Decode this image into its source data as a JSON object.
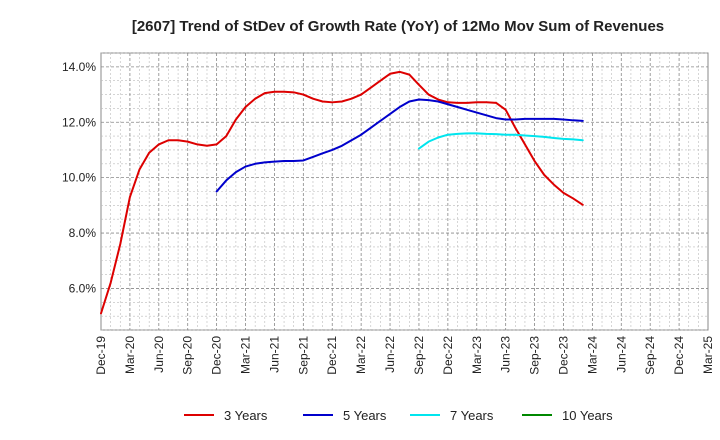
{
  "chart_data": {
    "type": "line",
    "title": "[2607]  Trend of StDev of Growth Rate (YoY) of 12Mo Mov Sum of Revenues",
    "xlabel": "",
    "ylabel": "",
    "ylim": [
      4.5,
      14.5
    ],
    "y_ticks": [
      6.0,
      8.0,
      10.0,
      12.0,
      14.0
    ],
    "y_tick_labels": [
      "6.0%",
      "8.0%",
      "10.0%",
      "12.0%",
      "14.0%"
    ],
    "x_tick_labels": [
      "Dec-19",
      "Mar-20",
      "Jun-20",
      "Sep-20",
      "Dec-20",
      "Mar-21",
      "Jun-21",
      "Sep-21",
      "Dec-21",
      "Mar-22",
      "Jun-22",
      "Sep-22",
      "Dec-22",
      "Mar-23",
      "Jun-23",
      "Sep-23",
      "Dec-23",
      "Mar-24",
      "Jun-24",
      "Sep-24",
      "Dec-24",
      "Mar-25"
    ],
    "grid": true,
    "legend_position": "bottom",
    "series": [
      {
        "name": "3 Years",
        "color": "#dd0000",
        "start_index": 0,
        "values": [
          5.1,
          6.2,
          7.6,
          9.3,
          10.3,
          10.9,
          11.2,
          11.35,
          11.35,
          11.3,
          11.2,
          11.15,
          11.2,
          11.5,
          12.1,
          12.55,
          12.85,
          13.05,
          13.1,
          13.1,
          13.08,
          13.0,
          12.85,
          12.75,
          12.72,
          12.75,
          12.85,
          13.0,
          13.25,
          13.5,
          13.75,
          13.82,
          13.72,
          13.35,
          13.0,
          12.82,
          12.72,
          12.7,
          12.7,
          12.72,
          12.72,
          12.7,
          12.45,
          11.8,
          11.2,
          10.6,
          10.1,
          9.75,
          9.45,
          9.25,
          9.02
        ]
      },
      {
        "name": "5 Years",
        "color": "#0000cc",
        "start_index": 12,
        "values": [
          9.5,
          9.9,
          10.2,
          10.4,
          10.5,
          10.55,
          10.58,
          10.6,
          10.6,
          10.62,
          10.75,
          10.88,
          11.0,
          11.15,
          11.35,
          11.55,
          11.8,
          12.05,
          12.3,
          12.55,
          12.75,
          12.82,
          12.8,
          12.75,
          12.65,
          12.55,
          12.45,
          12.35,
          12.25,
          12.15,
          12.1,
          12.1,
          12.12,
          12.12,
          12.12,
          12.12,
          12.1,
          12.07,
          12.05
        ]
      },
      {
        "name": "7 Years",
        "color": "#00e5ee",
        "start_index": 33,
        "values": [
          11.05,
          11.3,
          11.45,
          11.55,
          11.58,
          11.6,
          11.6,
          11.58,
          11.57,
          11.55,
          11.55,
          11.52,
          11.5,
          11.47,
          11.43,
          11.4,
          11.38,
          11.35
        ]
      },
      {
        "name": "10 Years",
        "color": "#008800",
        "start_index": 0,
        "values": []
      }
    ]
  }
}
